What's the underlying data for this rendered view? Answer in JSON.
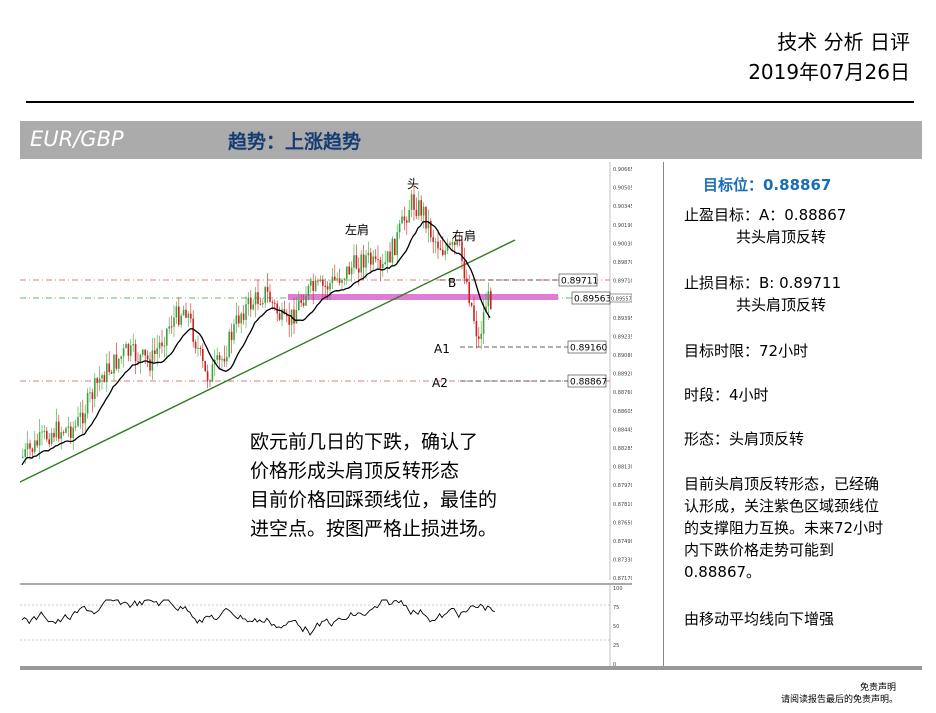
{
  "header": {
    "title": "技术 分析 日评",
    "date": "2019年07月26日"
  },
  "bar": {
    "pair": "EUR/GBP",
    "trend": "趋势：上涨趋势"
  },
  "chart_labels": {
    "head": "头",
    "left_shoulder": "左肩",
    "right_shoulder": "右肩",
    "b": "B",
    "a1": "A1",
    "a2": "A2",
    "price_b": "0.89711",
    "price_neck": "0.89563",
    "price_a1": "0.89160",
    "price_a2": "0.88867",
    "current_tag": "0.89557"
  },
  "axis_ticks": [
    "0.90665",
    "0.90505",
    "0.90345",
    "0.90190",
    "0.90030",
    "0.89870",
    "0.89710",
    "0.89557",
    "0.89395",
    "0.89235",
    "0.89080",
    "0.88920",
    "0.88760",
    "0.88605",
    "0.88445",
    "0.88285",
    "0.88130",
    "0.87970",
    "0.87810",
    "0.87650",
    "0.87490",
    "0.87330",
    "0.87170"
  ],
  "osc_ticks": [
    "100",
    "75",
    "50",
    "25",
    "0"
  ],
  "colors": {
    "up": "#3aa43a",
    "down": "#d11f1f",
    "trend": "#2e7d1f",
    "neck": "#e07bd6",
    "ma": "#000000"
  },
  "overlay": {
    "line1": "欧元前几日的下跌，确认了",
    "line2": "价格形成头肩顶反转形态",
    "line3": "目前价格回踩颈线位，最佳的",
    "line4": "进空点。按图严格止损进场。"
  },
  "side": {
    "target": "目标位：0.88867",
    "tp_label": "止盈目标：A：0.88867",
    "tp_sub": "共头肩顶反转",
    "sl_label": "止损目标：B: 0.89711",
    "sl_sub": "共头肩顶反转",
    "timeframe": "目标时限：72小时",
    "period": "时段：4小时",
    "pattern": "形态：头肩顶反转",
    "desc1": "目前头肩顶反转形态，已经确",
    "desc2": "认形成，关注紫色区域颈线位",
    "desc3": "的支撑阻力互换。未来72小时",
    "desc4": "内下跌价格走势可能到",
    "desc5": "0.88867。",
    "note": "由移动平均线向下增强"
  },
  "disclaimer": {
    "line1": "免责声明",
    "line2": "请阅读报告最后的免责声明。"
  }
}
